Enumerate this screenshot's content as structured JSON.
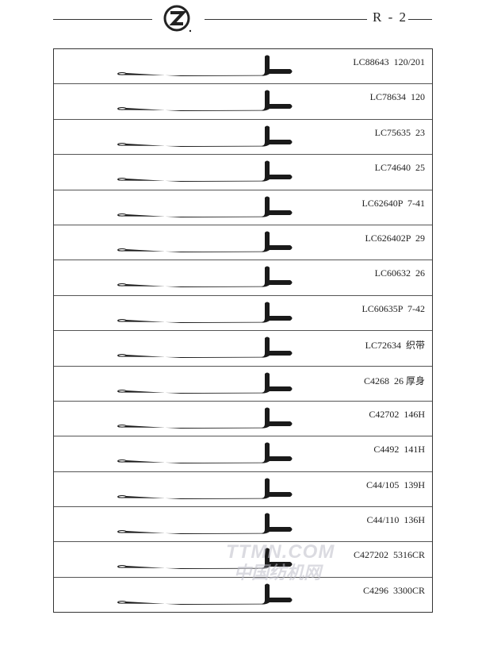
{
  "header": {
    "page_number": "R - 2",
    "logo": "Z"
  },
  "rows": [
    {
      "label": "LC88643  120/201"
    },
    {
      "label": "LC78634  120"
    },
    {
      "label": "LC75635  23"
    },
    {
      "label": "LC74640  25"
    },
    {
      "label": "LC62640P  7-41"
    },
    {
      "label": "LC626402P  29"
    },
    {
      "label": "LC60632  26"
    },
    {
      "label": "LC60635P  7-42"
    },
    {
      "label": "LC72634  织带"
    },
    {
      "label": "C4268  26 厚身"
    },
    {
      "label": "C42702  146H"
    },
    {
      "label": "C4492  141H"
    },
    {
      "label": "C44/105  139H"
    },
    {
      "label": "C44/110  136H"
    },
    {
      "label": "C427202  5316CR"
    },
    {
      "label": "C4296  3300CR"
    }
  ],
  "watermark": {
    "line1": "TTMN.COM",
    "line2": "中国纺机网"
  }
}
